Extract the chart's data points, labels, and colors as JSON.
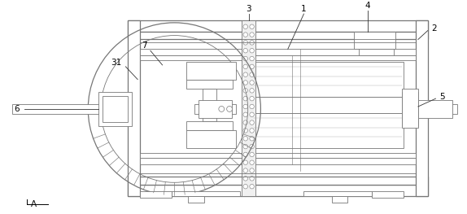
{
  "bg_color": "#ffffff",
  "line_color": "#777777",
  "fig_width": 5.74,
  "fig_height": 2.63,
  "dpi": 100
}
